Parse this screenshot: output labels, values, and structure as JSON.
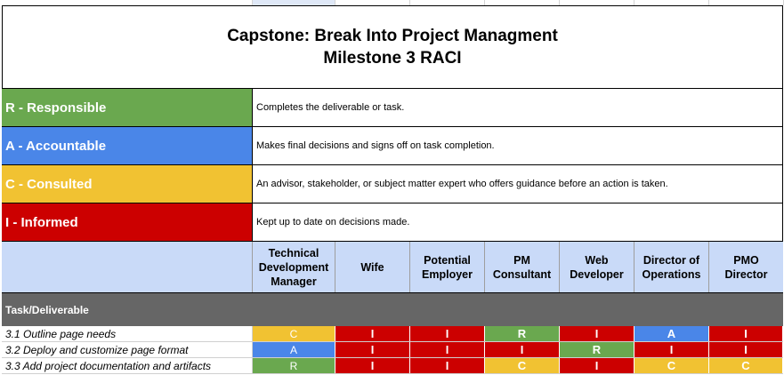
{
  "title": {
    "line1": "Capstone: Break Into Project Managment",
    "line2": "Milestone 3 RACI"
  },
  "legend": [
    {
      "code": "R",
      "label": "R - Responsible",
      "description": "Completes the deliverable or task.",
      "color": "#6aa84f"
    },
    {
      "code": "A",
      "label": "A - Accountable",
      "description": "Makes final decisions and signs off on task completion.",
      "color": "#4a86e8"
    },
    {
      "code": "C",
      "label": "C - Consulted",
      "description": "An advisor, stakeholder, or subject matter expert who offers guidance before an action is taken.",
      "color": "#f1c232"
    },
    {
      "code": "I",
      "label": "I - Informed",
      "description": "Kept up to date on decisions made.",
      "color": "#cc0000"
    }
  ],
  "roles": [
    "Technical Development Manager",
    "Wife",
    "Potential Employer",
    "PM Consultant",
    "Web Developer",
    "Director of Operations",
    "PMO Director"
  ],
  "section_label": "Task/Deliverable",
  "tasks": [
    {
      "name": "3.1 Outline page needs",
      "assignments": [
        "C",
        "I",
        "I",
        "R",
        "I",
        "A",
        "I"
      ]
    },
    {
      "name": "3.2 Deploy and customize page format",
      "assignments": [
        "A",
        "I",
        "I",
        "I",
        "R",
        "I",
        "I"
      ]
    },
    {
      "name": "3.3 Add project documentation and artifacts",
      "assignments": [
        "R",
        "I",
        "I",
        "C",
        "I",
        "C",
        "C"
      ]
    }
  ]
}
